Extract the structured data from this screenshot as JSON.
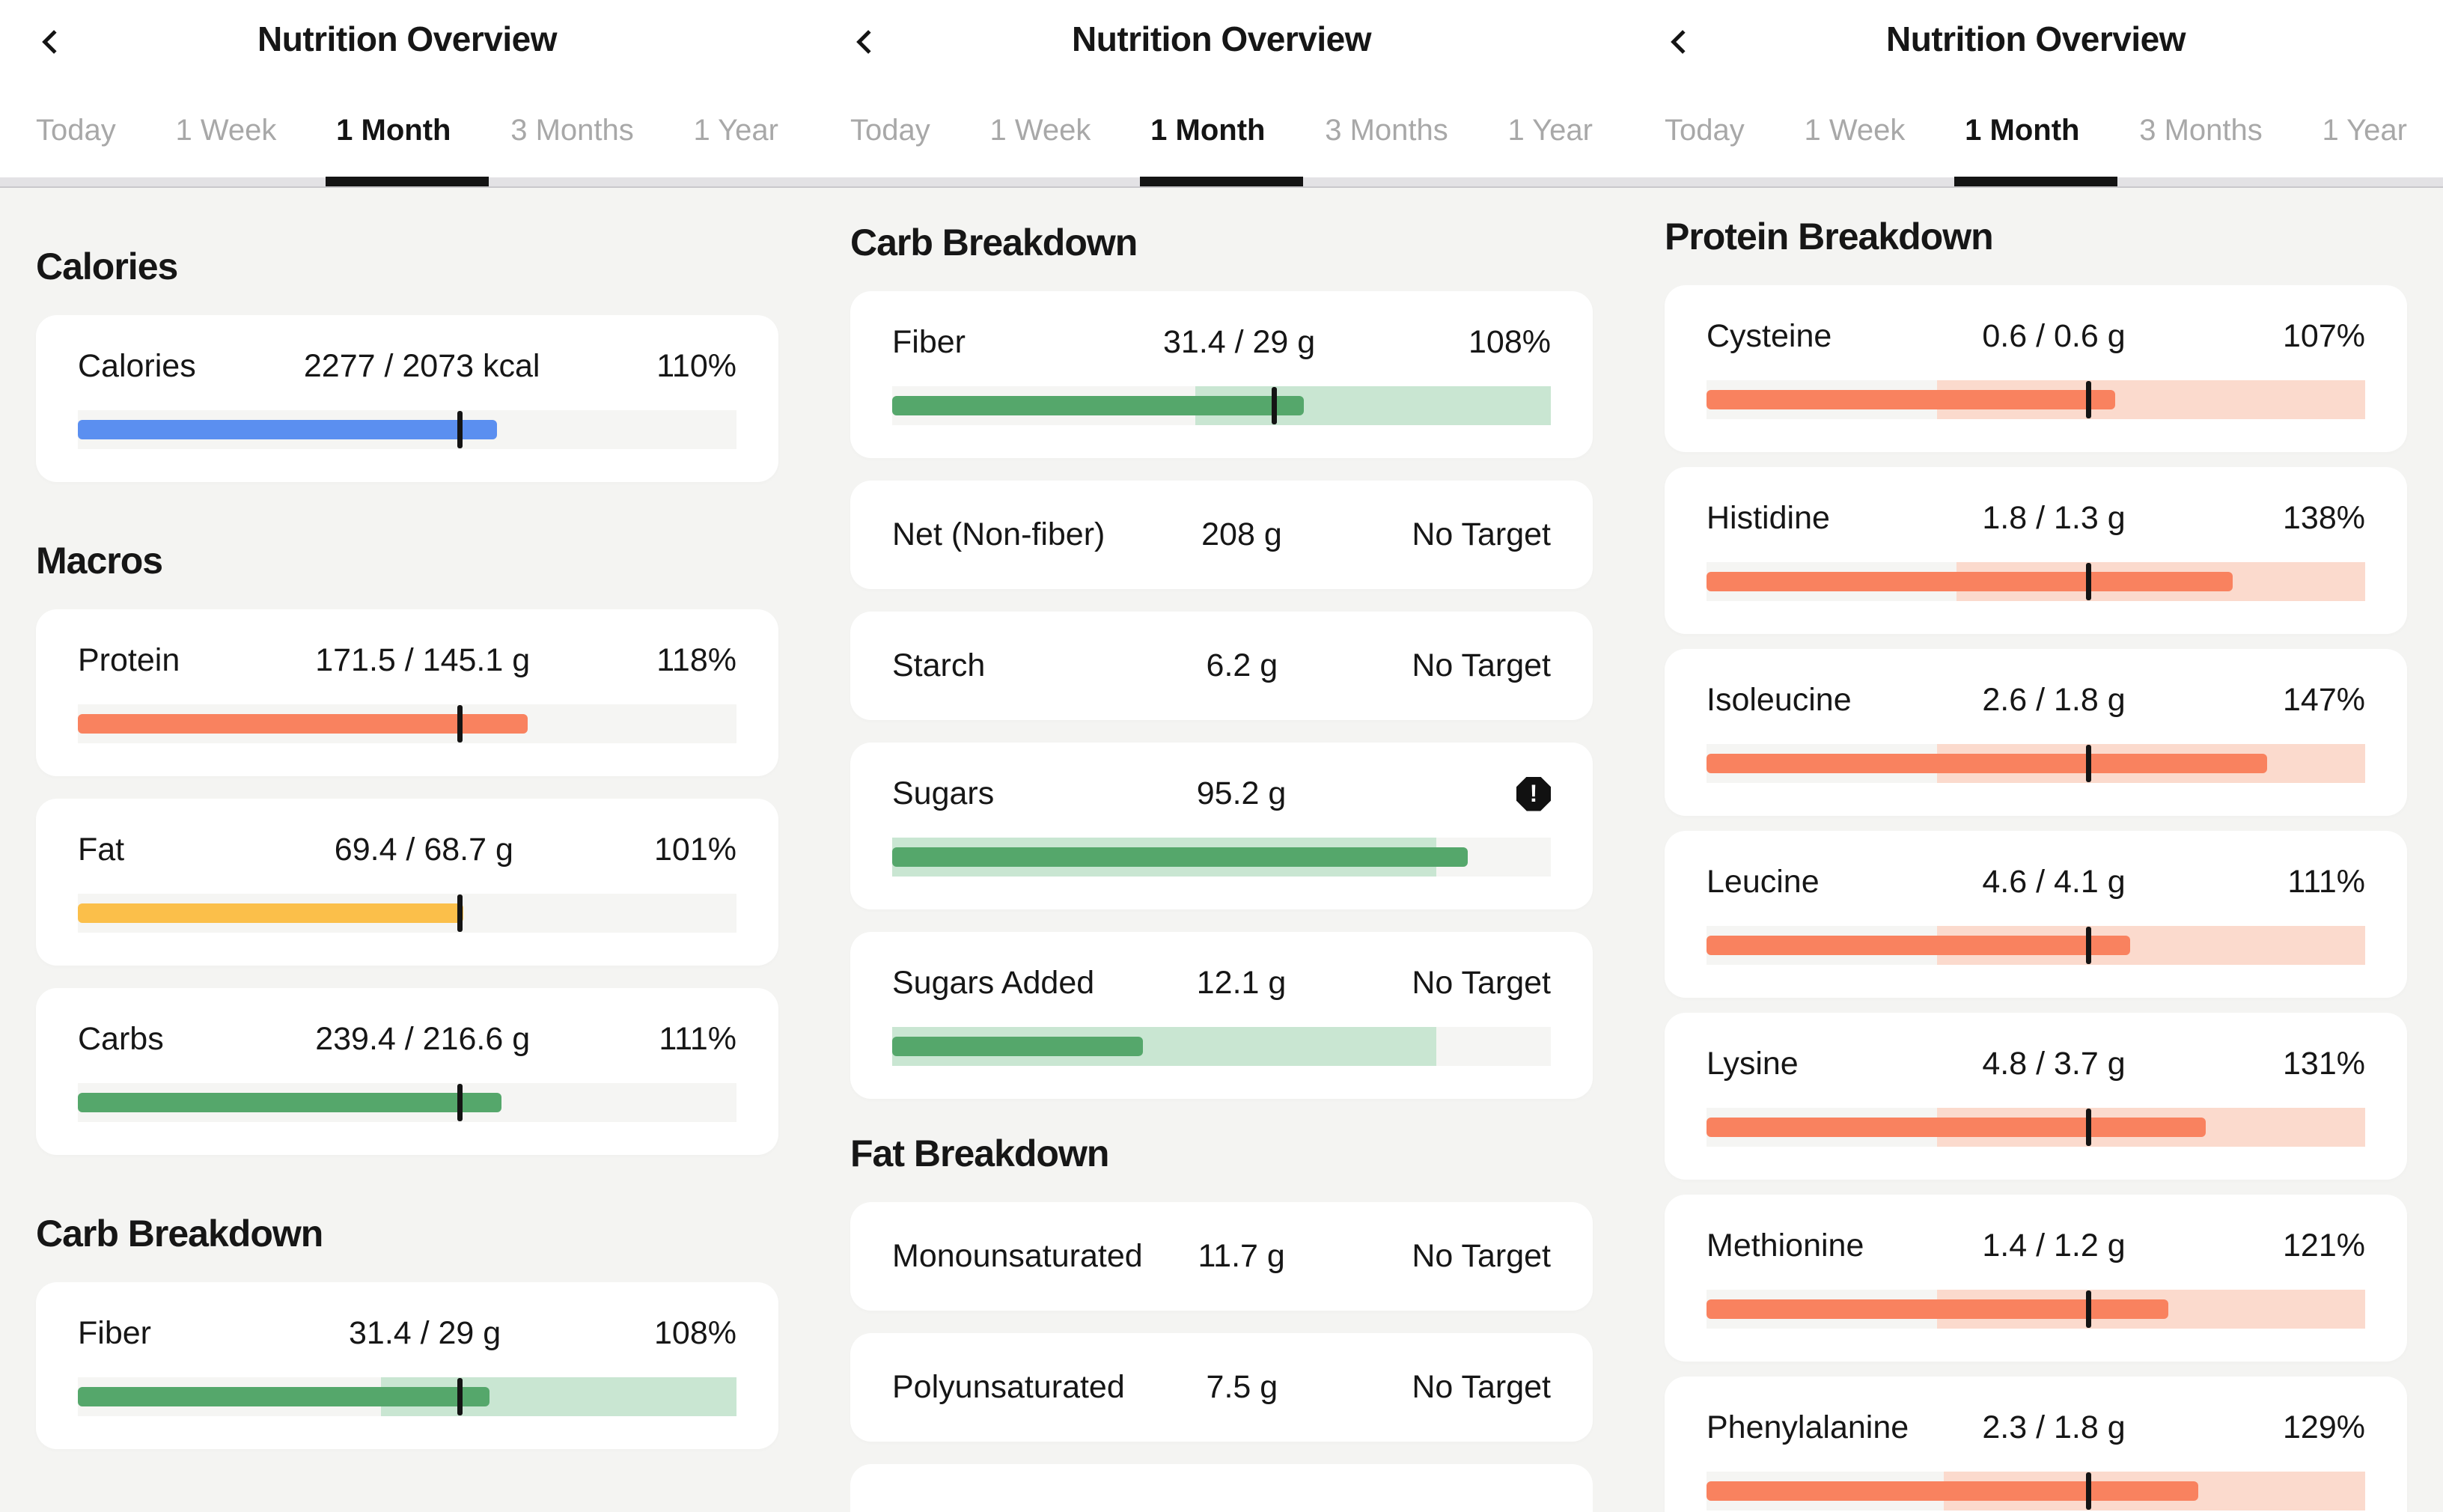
{
  "header": {
    "title": "Nutrition Overview"
  },
  "tabs": {
    "items": [
      "Today",
      "1 Week",
      "1 Month",
      "3 Months",
      "1 Year"
    ],
    "active_index": 2,
    "active_label": "1 Month"
  },
  "icons": {
    "warning_glyph": "!",
    "back": "chevron-left"
  },
  "colors": {
    "page_bg": "#F4F4F2",
    "card_bg": "#FFFFFF",
    "track": "#F5F5F3",
    "blue": "#5B8FF0",
    "orange": "#F9825F",
    "orange_band": "#FBDACD",
    "yellow": "#FBBF4A",
    "green": "#55A76B",
    "green_band": "#C9E6D2",
    "marker": "#141414",
    "tab_inactive": "#A8A8A8",
    "tab_active": "#141414"
  },
  "no_target_label": "No Target",
  "chart_data": {
    "type": "bar",
    "note": "horizontal progress bars; marker = daily target at 57.9% of track",
    "marker_pct_of_track": 57.9
  },
  "panels": [
    {
      "name": "calories-macros",
      "blocks": [
        {
          "type": "heading",
          "text": "Calories"
        },
        {
          "type": "card",
          "label": "Calories",
          "value": "2277 / 2073 kcal",
          "pct": "110%",
          "bar": {
            "color": "blue",
            "fill": 63.6,
            "marker": 57.9,
            "band": null
          }
        },
        {
          "type": "heading",
          "text": "Macros"
        },
        {
          "type": "card",
          "label": "Protein",
          "value": "171.5 / 145.1 g",
          "pct": "118%",
          "bar": {
            "color": "orange",
            "fill": 68.3,
            "marker": 57.9,
            "band": null
          }
        },
        {
          "type": "card",
          "label": "Fat",
          "value": "69.4 / 68.7 g",
          "pct": "101%",
          "bar": {
            "color": "yellow",
            "fill": 58.5,
            "marker": 57.9,
            "band": null
          }
        },
        {
          "type": "card",
          "label": "Carbs",
          "value": "239.4 / 216.6 g",
          "pct": "111%",
          "bar": {
            "color": "green",
            "fill": 64.3,
            "marker": 57.9,
            "band": null
          }
        },
        {
          "type": "heading",
          "text": "Carb Breakdown"
        },
        {
          "type": "card",
          "label": "Fiber",
          "value": "31.4 / 29 g",
          "pct": "108%",
          "bar": {
            "color": "green",
            "fill": 62.5,
            "marker": 57.9,
            "band": [
              46,
              100
            ]
          }
        }
      ]
    },
    {
      "name": "carb-fat-breakdown",
      "blocks": [
        {
          "type": "heading",
          "text": "Carb Breakdown"
        },
        {
          "type": "card",
          "label": "Fiber",
          "value": "31.4 / 29 g",
          "pct": "108%",
          "bar": {
            "color": "green",
            "fill": 62.5,
            "marker": 57.9,
            "band": [
              46,
              100
            ]
          }
        },
        {
          "type": "card",
          "label": "Net (Non-fiber)",
          "value": "208 g",
          "pct": "No Target",
          "bar": null
        },
        {
          "type": "card",
          "label": "Starch",
          "value": "6.2 g",
          "pct": "No Target",
          "bar": null
        },
        {
          "type": "card",
          "label": "Sugars",
          "value": "95.2 g",
          "pct": "",
          "warning": true,
          "bar": {
            "color": "green",
            "fill": 87.4,
            "marker": null,
            "band": [
              0,
              82.6
            ]
          }
        },
        {
          "type": "card",
          "label": "Sugars Added",
          "value": "12.1 g",
          "pct": "No Target",
          "bar": {
            "color": "green",
            "fill": 38.1,
            "marker": null,
            "band": [
              0,
              82.6
            ]
          }
        },
        {
          "type": "heading",
          "text": "Fat Breakdown"
        },
        {
          "type": "card",
          "label": "Monounsaturated",
          "value": "11.7 g",
          "pct": "No Target",
          "bar": null
        },
        {
          "type": "card",
          "label": "Polyunsaturated",
          "value": "7.5 g",
          "pct": "No Target",
          "bar": null
        },
        {
          "type": "partial"
        }
      ]
    },
    {
      "name": "protein-breakdown",
      "blocks": [
        {
          "type": "heading",
          "text": "Protein Breakdown"
        },
        {
          "type": "card",
          "label": "Cysteine",
          "value": "0.6 / 0.6 g",
          "pct": "107%",
          "bar": {
            "color": "orange",
            "fill": 62.0,
            "marker": 57.9,
            "band": [
              35,
              100
            ]
          }
        },
        {
          "type": "card",
          "label": "Histidine",
          "value": "1.8 / 1.3 g",
          "pct": "138%",
          "bar": {
            "color": "orange",
            "fill": 79.9,
            "marker": 57.9,
            "band": [
              38,
              100
            ]
          }
        },
        {
          "type": "card",
          "label": "Isoleucine",
          "value": "2.6 / 1.8 g",
          "pct": "147%",
          "bar": {
            "color": "orange",
            "fill": 85.1,
            "marker": 57.9,
            "band": [
              35,
              100
            ]
          }
        },
        {
          "type": "card",
          "label": "Leucine",
          "value": "4.6 / 4.1 g",
          "pct": "111%",
          "bar": {
            "color": "orange",
            "fill": 64.3,
            "marker": 57.9,
            "band": [
              35,
              100
            ]
          }
        },
        {
          "type": "card",
          "label": "Lysine",
          "value": "4.8 / 3.7 g",
          "pct": "131%",
          "bar": {
            "color": "orange",
            "fill": 75.8,
            "marker": 57.9,
            "band": [
              35,
              100
            ]
          }
        },
        {
          "type": "card",
          "label": "Methionine",
          "value": "1.4 / 1.2 g",
          "pct": "121%",
          "bar": {
            "color": "orange",
            "fill": 70.1,
            "marker": 57.9,
            "band": [
              35,
              100
            ]
          }
        },
        {
          "type": "card",
          "label": "Phenylalanine",
          "value": "2.3 / 1.8 g",
          "pct": "129%",
          "bar": {
            "color": "orange",
            "fill": 74.7,
            "marker": 57.9,
            "band": [
              36,
              100
            ]
          }
        }
      ]
    }
  ]
}
